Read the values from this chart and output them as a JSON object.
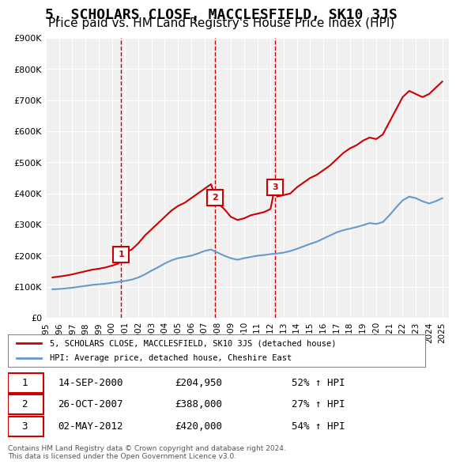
{
  "title": "5, SCHOLARS CLOSE, MACCLESFIELD, SK10 3JS",
  "subtitle": "Price paid vs. HM Land Registry's House Price Index (HPI)",
  "title_fontsize": 13,
  "subtitle_fontsize": 11,
  "ylabel": "",
  "ylim": [
    0,
    900000
  ],
  "yticks": [
    0,
    100000,
    200000,
    300000,
    400000,
    500000,
    600000,
    700000,
    800000,
    900000
  ],
  "ytick_labels": [
    "£0",
    "£100K",
    "£200K",
    "£300K",
    "£400K",
    "£500K",
    "£600K",
    "£700K",
    "£800K",
    "£900K"
  ],
  "bg_color": "#ffffff",
  "plot_bg_color": "#f0f0f0",
  "grid_color": "#ffffff",
  "red_color": "#cc0000",
  "blue_color": "#6699cc",
  "sale_marker_color": "#cc0000",
  "sale_dates": [
    "2000-09-14",
    "2007-10-26",
    "2012-05-02"
  ],
  "sale_prices": [
    204950,
    388000,
    420000
  ],
  "sale_labels": [
    "1",
    "2",
    "3"
  ],
  "sale_table": [
    [
      "1",
      "14-SEP-2000",
      "£204,950",
      "52% ↑ HPI"
    ],
    [
      "2",
      "26-OCT-2007",
      "£388,000",
      "27% ↑ HPI"
    ],
    [
      "3",
      "02-MAY-2012",
      "£420,000",
      "54% ↑ HPI"
    ]
  ],
  "legend_line1": "5, SCHOLARS CLOSE, MACCLESFIELD, SK10 3JS (detached house)",
  "legend_line2": "HPI: Average price, detached house, Cheshire East",
  "footer": "Contains HM Land Registry data © Crown copyright and database right 2024.\nThis data is licensed under the Open Government Licence v3.0.",
  "red_line_x": [
    1995.5,
    1996.0,
    1996.5,
    1997.0,
    1997.5,
    1998.0,
    1998.5,
    1999.0,
    1999.5,
    2000.0,
    2000.5,
    2000.75,
    2001.0,
    2001.5,
    2002.0,
    2002.5,
    2003.0,
    2003.5,
    2004.0,
    2004.5,
    2005.0,
    2005.5,
    2006.0,
    2006.5,
    2007.0,
    2007.5,
    2007.83,
    2008.0,
    2008.5,
    2009.0,
    2009.5,
    2010.0,
    2010.5,
    2011.0,
    2011.5,
    2012.0,
    2012.33,
    2012.5,
    2013.0,
    2013.5,
    2014.0,
    2014.5,
    2015.0,
    2015.5,
    2016.0,
    2016.5,
    2017.0,
    2017.5,
    2018.0,
    2018.5,
    2019.0,
    2019.5,
    2020.0,
    2020.5,
    2021.0,
    2021.5,
    2022.0,
    2022.5,
    2023.0,
    2023.5,
    2024.0,
    2024.5,
    2025.0
  ],
  "red_line_y": [
    130000,
    133000,
    136000,
    140000,
    145000,
    150000,
    155000,
    158000,
    162000,
    168000,
    175000,
    204950,
    210000,
    220000,
    240000,
    265000,
    285000,
    305000,
    325000,
    345000,
    360000,
    370000,
    385000,
    400000,
    415000,
    430000,
    388000,
    370000,
    350000,
    325000,
    315000,
    320000,
    330000,
    335000,
    340000,
    350000,
    420000,
    390000,
    395000,
    400000,
    420000,
    435000,
    450000,
    460000,
    475000,
    490000,
    510000,
    530000,
    545000,
    555000,
    570000,
    580000,
    575000,
    590000,
    630000,
    670000,
    710000,
    730000,
    720000,
    710000,
    720000,
    740000,
    760000
  ],
  "blue_line_x": [
    1995.5,
    1996.0,
    1996.5,
    1997.0,
    1997.5,
    1998.0,
    1998.5,
    1999.0,
    1999.5,
    2000.0,
    2000.5,
    2001.0,
    2001.5,
    2002.0,
    2002.5,
    2003.0,
    2003.5,
    2004.0,
    2004.5,
    2005.0,
    2005.5,
    2006.0,
    2006.5,
    2007.0,
    2007.5,
    2008.0,
    2008.5,
    2009.0,
    2009.5,
    2010.0,
    2010.5,
    2011.0,
    2011.5,
    2012.0,
    2012.5,
    2013.0,
    2013.5,
    2014.0,
    2014.5,
    2015.0,
    2015.5,
    2016.0,
    2016.5,
    2017.0,
    2017.5,
    2018.0,
    2018.5,
    2019.0,
    2019.5,
    2020.0,
    2020.5,
    2021.0,
    2021.5,
    2022.0,
    2022.5,
    2023.0,
    2023.5,
    2024.0,
    2024.5,
    2025.0
  ],
  "blue_line_y": [
    92000,
    93000,
    95000,
    97000,
    100000,
    103000,
    106000,
    108000,
    110000,
    113000,
    116000,
    119000,
    123000,
    130000,
    140000,
    152000,
    163000,
    175000,
    185000,
    192000,
    196000,
    200000,
    207000,
    215000,
    220000,
    210000,
    200000,
    192000,
    187000,
    192000,
    196000,
    200000,
    202000,
    205000,
    207000,
    210000,
    215000,
    222000,
    230000,
    238000,
    245000,
    255000,
    265000,
    275000,
    282000,
    287000,
    292000,
    298000,
    305000,
    302000,
    308000,
    330000,
    355000,
    378000,
    390000,
    385000,
    375000,
    368000,
    375000,
    385000
  ],
  "xtick_years": [
    1995,
    1996,
    1997,
    1998,
    1999,
    2000,
    2001,
    2002,
    2003,
    2004,
    2005,
    2006,
    2007,
    2008,
    2009,
    2010,
    2011,
    2012,
    2013,
    2014,
    2015,
    2016,
    2017,
    2018,
    2019,
    2020,
    2021,
    2022,
    2023,
    2024,
    2025
  ],
  "vline_dates": [
    2000.71,
    2007.82,
    2012.33
  ],
  "vline_color": "#cc0000"
}
